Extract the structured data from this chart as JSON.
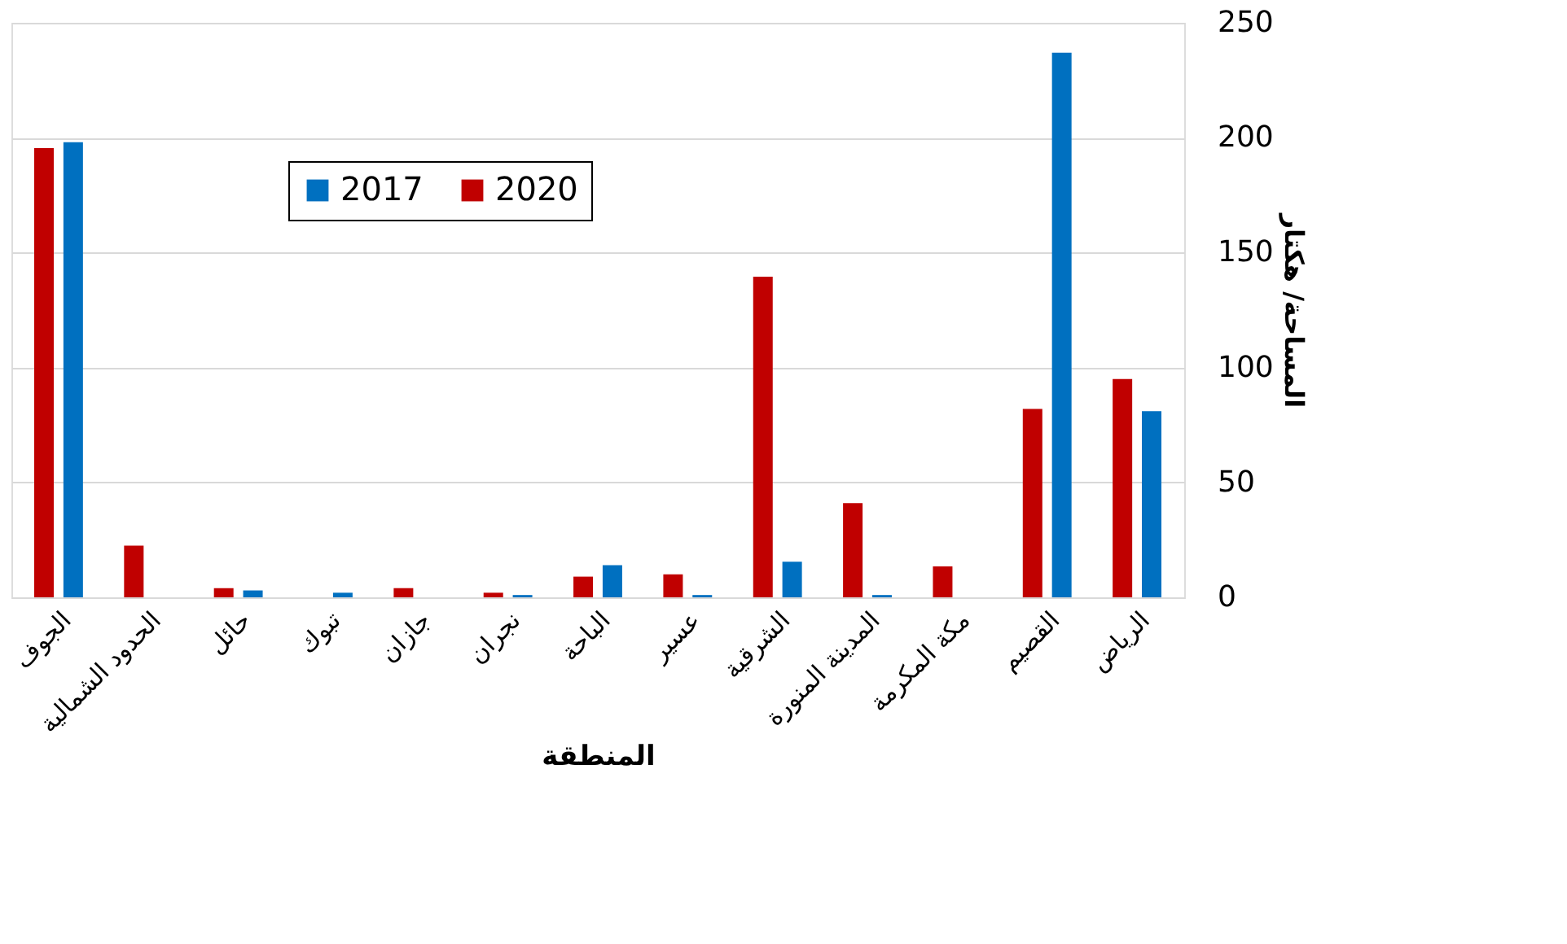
{
  "chart_data": {
    "type": "bar",
    "xlabel": "المنطقة",
    "ylabel": "المساحة/ هكتار",
    "categories": [
      "الجوف",
      "الحدود الشمالية",
      "حائل",
      "تبوك",
      "جازان",
      "نجران",
      "الباحة",
      "عسير",
      "الشرقية",
      "المدينة المنورة",
      "مكة المكرمة",
      "القصيم",
      "الرياض"
    ],
    "series": [
      {
        "name": "2017",
        "color": "#0070c0",
        "values": [
          198,
          0,
          3,
          2,
          0,
          1,
          14,
          1,
          15.5,
          1,
          0,
          237,
          81
        ]
      },
      {
        "name": "2020",
        "color": "#c00000",
        "values": [
          195.5,
          22.5,
          4,
          0,
          4,
          2,
          9,
          10,
          139.5,
          41,
          13.5,
          82,
          95
        ]
      }
    ],
    "ylim": [
      0,
      250
    ],
    "yticks": [
      0,
      50,
      100,
      150,
      200,
      250
    ],
    "grid": "y",
    "legend": "top left"
  }
}
